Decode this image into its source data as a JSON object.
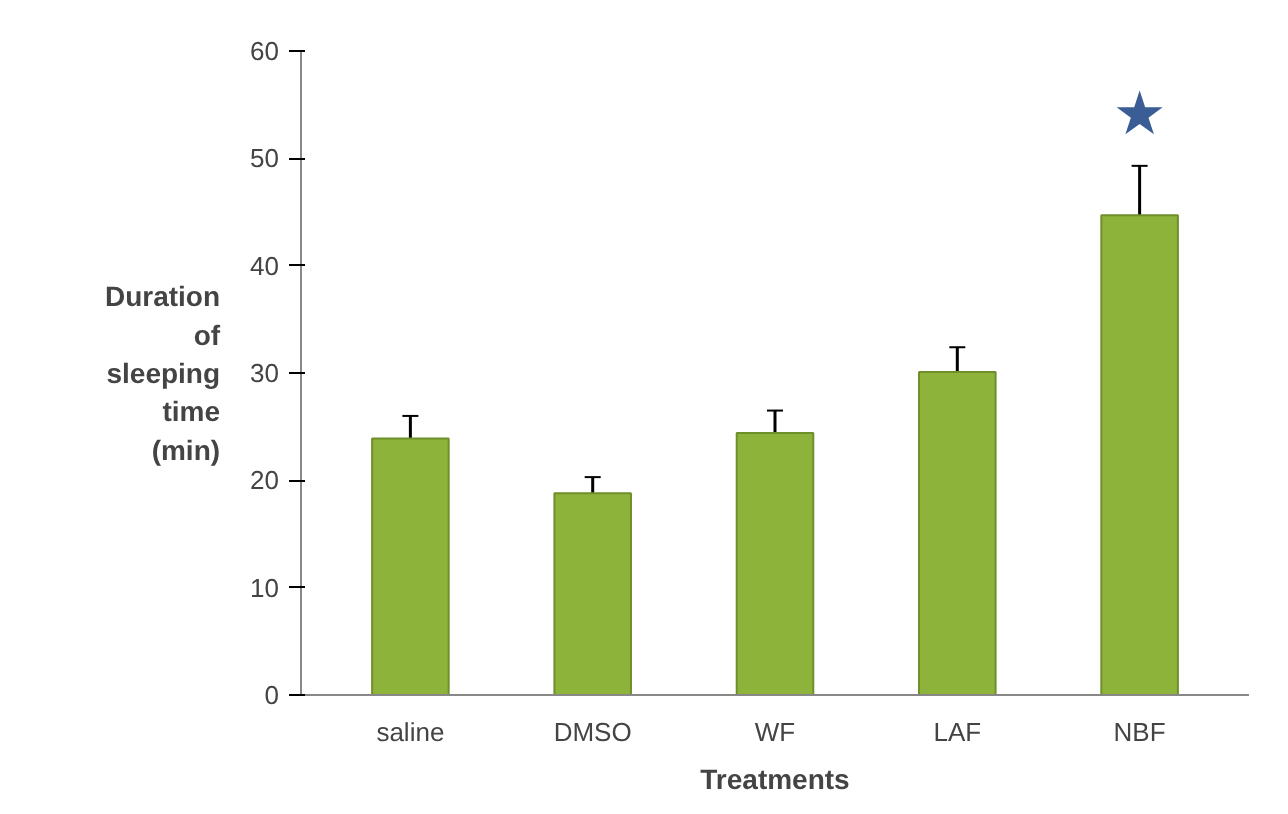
{
  "chart_data": {
    "type": "bar",
    "xlabel": "Treatments",
    "ylabel": "Duration of sleeping time (min)",
    "categories": [
      "saline",
      "DMSO",
      "WF",
      "LAF",
      "NBF"
    ],
    "values": [
      23.9,
      18.8,
      24.4,
      30.1,
      44.7
    ],
    "errors": [
      2.1,
      1.5,
      2.1,
      2.3,
      4.6
    ],
    "color": "#8db33a",
    "ylim": [
      0,
      60
    ],
    "yticks": [
      0,
      10,
      20,
      30,
      40,
      50,
      60
    ],
    "grid": false,
    "annotations": [
      "★"
    ]
  }
}
